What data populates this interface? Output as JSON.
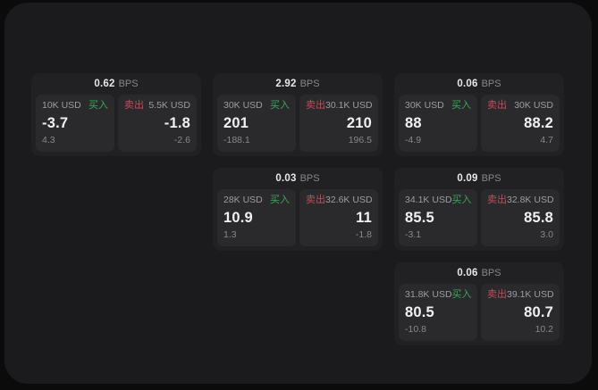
{
  "labels": {
    "bps": "BPS",
    "buy": "买入",
    "sell": "卖出"
  },
  "colors": {
    "page_bg": "#0b0b0c",
    "panel_bg": "#1b1b1d",
    "card_bg": "#212123",
    "tile_bg": "#2a2a2c",
    "buy_green": "#3ba55d",
    "sell_red": "#c24c5e"
  },
  "cards": [
    {
      "bps": "0.62",
      "buy": {
        "amount": "10K USD",
        "value": "-3.7",
        "delta": "4.3"
      },
      "sell": {
        "amount": "5.5K USD",
        "value": "-1.8",
        "delta": "-2.6"
      }
    },
    {
      "bps": "2.92",
      "buy": {
        "amount": "30K USD",
        "value": "201",
        "delta": "-188.1"
      },
      "sell": {
        "amount": "30.1K USD",
        "value": "210",
        "delta": "196.5"
      }
    },
    {
      "bps": "0.06",
      "buy": {
        "amount": "30K USD",
        "value": "88",
        "delta": "-4.9"
      },
      "sell": {
        "amount": "30K USD",
        "value": "88.2",
        "delta": "4.7"
      }
    },
    {
      "bps": "0.03",
      "buy": {
        "amount": "28K USD",
        "value": "10.9",
        "delta": "1.3"
      },
      "sell": {
        "amount": "32.6K USD",
        "value": "11",
        "delta": "-1.8"
      }
    },
    {
      "bps": "0.09",
      "buy": {
        "amount": "34.1K USD",
        "value": "85.5",
        "delta": "-3.1"
      },
      "sell": {
        "amount": "32.8K USD",
        "value": "85.8",
        "delta": "3.0"
      }
    },
    {
      "bps": "0.06",
      "buy": {
        "amount": "31.8K USD",
        "value": "80.5",
        "delta": "-10.8"
      },
      "sell": {
        "amount": "39.1K USD",
        "value": "80.7",
        "delta": "10.2"
      }
    }
  ]
}
